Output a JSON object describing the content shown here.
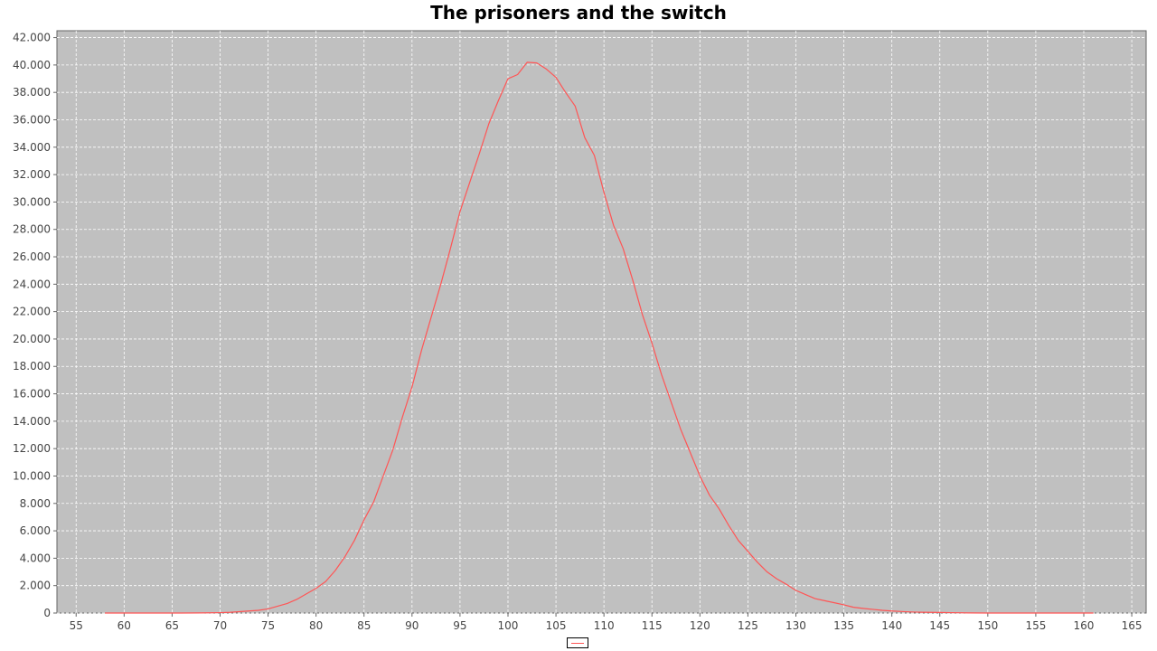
{
  "chart_data": {
    "type": "line",
    "title": "The prisoners and the switch",
    "xlabel": "",
    "ylabel": "",
    "xlim": [
      53,
      166.5
    ],
    "ylim": [
      0,
      42500
    ],
    "x_ticks": [
      55,
      60,
      65,
      70,
      75,
      80,
      85,
      90,
      95,
      100,
      105,
      110,
      115,
      120,
      125,
      130,
      135,
      140,
      145,
      150,
      155,
      160,
      165
    ],
    "y_ticks": [
      0,
      2000,
      4000,
      6000,
      8000,
      10000,
      12000,
      14000,
      16000,
      18000,
      20000,
      22000,
      24000,
      26000,
      28000,
      30000,
      32000,
      34000,
      36000,
      38000,
      40000,
      42000
    ],
    "y_tick_labels": [
      "0",
      "2.000",
      "4.000",
      "6.000",
      "8.000",
      "10.000",
      "12.000",
      "14.000",
      "16.000",
      "18.000",
      "20.000",
      "22.000",
      "24.000",
      "26.000",
      "28.000",
      "30.000",
      "32.000",
      "34.000",
      "36.000",
      "38.000",
      "40.000",
      "42.000"
    ],
    "grid": true,
    "legend": "bottom-center",
    "plot_background": "#c0c0c0",
    "series": [
      {
        "color": "#ff5555",
        "x": [
          58,
          60,
          62,
          64,
          66,
          68,
          70,
          71,
          72,
          73,
          74,
          75,
          76,
          77,
          78,
          79,
          80,
          81,
          82,
          83,
          84,
          85,
          86,
          87,
          88,
          89,
          90,
          91,
          92,
          93,
          94,
          95,
          96,
          97,
          98,
          99,
          100,
          101,
          102,
          103,
          104,
          105,
          106,
          107,
          108,
          109,
          110,
          111,
          112,
          113,
          114,
          115,
          116,
          117,
          118,
          119,
          120,
          121,
          122,
          123,
          124,
          125,
          126,
          127,
          128,
          129,
          130,
          131,
          132,
          133,
          134,
          135,
          136,
          137,
          138,
          139,
          140,
          141,
          142,
          143,
          144,
          145,
          146,
          147,
          148,
          150,
          152,
          155,
          158,
          161
        ],
        "y": [
          0,
          0,
          0,
          0,
          0,
          10,
          30,
          50,
          100,
          150,
          200,
          300,
          500,
          700,
          1000,
          1400,
          1800,
          2300,
          3100,
          4100,
          5300,
          6800,
          8100,
          10000,
          11900,
          14300,
          16500,
          19200,
          21600,
          24000,
          26600,
          29300,
          31400,
          33500,
          35700,
          37400,
          39000,
          39300,
          40200,
          40150,
          39700,
          39100,
          38000,
          37000,
          34700,
          33400,
          30700,
          28300,
          26600,
          24300,
          21800,
          19700,
          17400,
          15400,
          13400,
          11700,
          10000,
          8600,
          7600,
          6400,
          5300,
          4500,
          3700,
          3000,
          2500,
          2100,
          1650,
          1350,
          1050,
          900,
          750,
          600,
          420,
          340,
          270,
          200,
          150,
          110,
          80,
          60,
          50,
          40,
          30,
          20,
          10,
          0,
          0,
          0,
          0,
          0
        ]
      }
    ]
  }
}
